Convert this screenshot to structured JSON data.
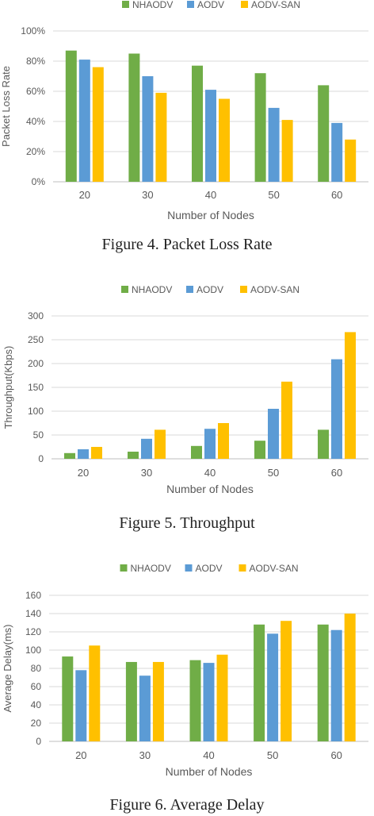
{
  "colors": {
    "NHAODV": "#70ad47",
    "AODV": "#5b9bd5",
    "AODV-SAN": "#ffc000",
    "grid": "#d9d9d9",
    "axis": "#bfbfbf"
  },
  "chart_data": [
    {
      "type": "bar",
      "legend": [
        "NHAODV",
        "AODV",
        "AODV-SAN"
      ],
      "legend_position": "top",
      "categories": [
        "20",
        "30",
        "40",
        "50",
        "60"
      ],
      "series": [
        {
          "name": "NHAODV",
          "values": [
            87,
            85,
            77,
            72,
            64
          ]
        },
        {
          "name": "AODV",
          "values": [
            81,
            70,
            61,
            49,
            39
          ]
        },
        {
          "name": "AODV-SAN",
          "values": [
            76,
            59,
            55,
            41,
            28
          ]
        }
      ],
      "xlabel": "Number of Nodes",
      "ylabel": "Packet Loss Rate",
      "ylim": [
        0,
        100
      ],
      "yticks": [
        "0%",
        "20%",
        "40%",
        "60%",
        "80%",
        "100%"
      ],
      "grid": "horizontal",
      "caption": "Figure 4. Packet Loss Rate"
    },
    {
      "type": "bar",
      "legend": [
        "NHAODV",
        "AODV",
        "AODV-SAN"
      ],
      "legend_position": "top",
      "categories": [
        "20",
        "30",
        "40",
        "50",
        "60"
      ],
      "series": [
        {
          "name": "NHAODV",
          "values": [
            12,
            15,
            27,
            38,
            61
          ]
        },
        {
          "name": "AODV",
          "values": [
            20,
            42,
            63,
            105,
            209
          ]
        },
        {
          "name": "AODV-SAN",
          "values": [
            25,
            61,
            75,
            162,
            266
          ]
        }
      ],
      "xlabel": "Number of Nodes",
      "ylabel": "Throughput(Kbps)",
      "ylim": [
        0,
        300
      ],
      "yticks": [
        "0",
        "50",
        "100",
        "150",
        "200",
        "250",
        "300"
      ],
      "grid": "horizontal",
      "caption": "Figure 5. Throughput"
    },
    {
      "type": "bar",
      "legend": [
        "NHAODV",
        "AODV",
        "AODV-SAN"
      ],
      "legend_position": "top",
      "categories": [
        "20",
        "30",
        "40",
        "50",
        "60"
      ],
      "series": [
        {
          "name": "NHAODV",
          "values": [
            93,
            87,
            89,
            128,
            128
          ]
        },
        {
          "name": "AODV",
          "values": [
            78,
            72,
            86,
            118,
            122
          ]
        },
        {
          "name": "AODV-SAN",
          "values": [
            105,
            87,
            95,
            132,
            140
          ]
        }
      ],
      "xlabel": "Number of Nodes",
      "ylabel": "Average Delay(ms)",
      "ylim": [
        0,
        160
      ],
      "yticks": [
        "0",
        "20",
        "40",
        "60",
        "80",
        "100",
        "120",
        "140",
        "160"
      ],
      "grid": "horizontal",
      "caption": "Figure 6. Average Delay"
    }
  ]
}
